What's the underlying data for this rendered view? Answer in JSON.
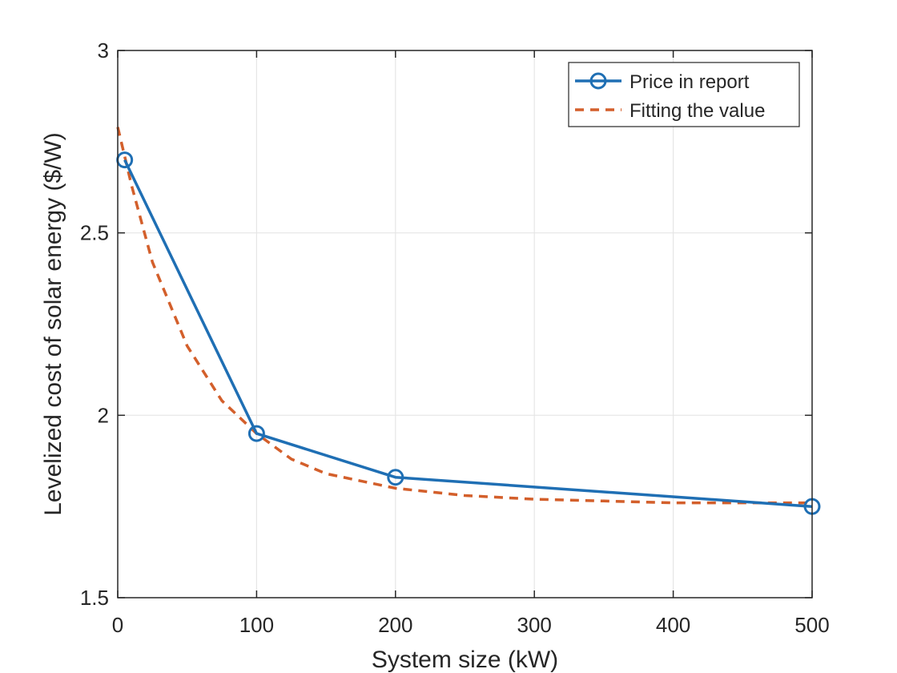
{
  "chart_data": {
    "type": "line",
    "xlabel": "System size (kW)",
    "ylabel": "Levelized cost of solar energy ($/W)",
    "xlim": [
      0,
      500
    ],
    "ylim": [
      1.5,
      3
    ],
    "xticks": [
      0,
      100,
      200,
      300,
      400,
      500
    ],
    "xtick_labels": [
      "0",
      "100",
      "200",
      "300",
      "400",
      "500"
    ],
    "yticks": [
      1.5,
      2,
      2.5,
      3
    ],
    "ytick_labels": [
      "1.5",
      "2",
      "2.5",
      "3"
    ],
    "grid": true,
    "legend_position": "top-right",
    "series": [
      {
        "name": "Price in report",
        "style": "solid-with-circle-markers",
        "color": "#1f6fb4",
        "x": [
          5,
          100,
          200,
          500
        ],
        "y": [
          2.7,
          1.95,
          1.83,
          1.75
        ]
      },
      {
        "name": "Fitting the value",
        "style": "dashed",
        "color": "#d35f2b",
        "x": [
          0,
          10,
          25,
          50,
          75,
          100,
          125,
          150,
          200,
          250,
          300,
          350,
          400,
          450,
          500
        ],
        "y": [
          2.79,
          2.63,
          2.42,
          2.19,
          2.04,
          1.95,
          1.88,
          1.84,
          1.8,
          1.78,
          1.77,
          1.765,
          1.76,
          1.76,
          1.76
        ]
      }
    ]
  }
}
